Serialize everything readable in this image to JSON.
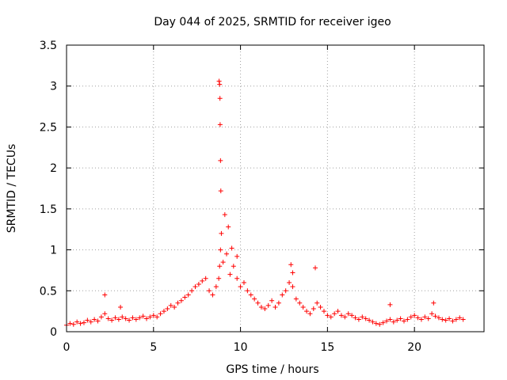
{
  "chart_data": {
    "type": "scatter",
    "title": "Day 044 of 2025, SRMTID for receiver igeo",
    "xlabel": "GPS time / hours",
    "ylabel": "SRMTID / TECUs",
    "xlim": [
      0,
      24
    ],
    "ylim": [
      0,
      3.5
    ],
    "xticks": [
      0,
      5,
      10,
      15,
      20
    ],
    "xtick_labels": [
      "0",
      "5",
      "10",
      "15",
      "20"
    ],
    "yticks": [
      0,
      0.5,
      1,
      1.5,
      2,
      2.5,
      3,
      3.5
    ],
    "ytick_labels": [
      "0",
      "0.5",
      "1",
      "1.5",
      "2",
      "2.5",
      "3",
      "3.5"
    ],
    "grid": true,
    "marker": "+",
    "color": "#ff0000",
    "series": [
      {
        "name": "SRMTID",
        "x": [
          0.0,
          0.2,
          0.4,
          0.6,
          0.8,
          1.0,
          1.2,
          1.4,
          1.6,
          1.8,
          2.0,
          2.2,
          2.4,
          2.6,
          2.8,
          3.0,
          3.2,
          3.4,
          3.6,
          3.8,
          4.0,
          4.2,
          4.4,
          4.6,
          4.8,
          5.0,
          5.2,
          5.4,
          5.6,
          5.8,
          6.0,
          6.2,
          6.4,
          6.6,
          6.8,
          7.0,
          7.2,
          7.4,
          7.6,
          7.8,
          8.0,
          8.2,
          8.4,
          8.6,
          8.75,
          8.8,
          8.85,
          8.9,
          9.0,
          9.2,
          9.4,
          9.6,
          9.8,
          10.0,
          10.2,
          10.4,
          10.6,
          10.8,
          11.0,
          11.2,
          11.4,
          11.6,
          11.8,
          12.0,
          12.2,
          12.4,
          12.6,
          12.8,
          13.0,
          13.2,
          13.4,
          13.6,
          13.8,
          14.0,
          14.2,
          14.4,
          14.6,
          14.8,
          15.0,
          15.2,
          15.4,
          15.6,
          15.8,
          16.0,
          16.2,
          16.4,
          16.6,
          16.8,
          17.0,
          17.2,
          17.4,
          17.6,
          17.8,
          18.0,
          18.2,
          18.4,
          18.6,
          18.8,
          19.0,
          19.2,
          19.4,
          19.6,
          19.8,
          20.0,
          20.2,
          20.4,
          20.6,
          20.8,
          21.0,
          21.2,
          21.4,
          21.6,
          21.8,
          22.0,
          22.2,
          22.4,
          22.6,
          22.8,
          8.77,
          8.8,
          8.82,
          8.83,
          8.85,
          8.87,
          9.1,
          9.3,
          9.5,
          9.8,
          12.9,
          13.0,
          14.3,
          2.2,
          3.1,
          18.6,
          21.1
        ],
        "y": [
          0.08,
          0.1,
          0.09,
          0.12,
          0.1,
          0.11,
          0.14,
          0.12,
          0.15,
          0.13,
          0.18,
          0.22,
          0.16,
          0.14,
          0.17,
          0.15,
          0.18,
          0.16,
          0.14,
          0.17,
          0.15,
          0.17,
          0.19,
          0.16,
          0.18,
          0.2,
          0.18,
          0.22,
          0.25,
          0.28,
          0.32,
          0.3,
          0.35,
          0.38,
          0.42,
          0.45,
          0.5,
          0.55,
          0.58,
          0.62,
          0.65,
          0.5,
          0.45,
          0.55,
          0.65,
          0.8,
          1.0,
          1.2,
          0.85,
          0.95,
          0.7,
          0.8,
          0.65,
          0.55,
          0.6,
          0.5,
          0.45,
          0.4,
          0.35,
          0.3,
          0.28,
          0.32,
          0.38,
          0.3,
          0.35,
          0.45,
          0.5,
          0.6,
          0.55,
          0.4,
          0.35,
          0.3,
          0.25,
          0.22,
          0.28,
          0.35,
          0.3,
          0.25,
          0.2,
          0.18,
          0.22,
          0.25,
          0.2,
          0.18,
          0.22,
          0.2,
          0.17,
          0.15,
          0.18,
          0.16,
          0.14,
          0.12,
          0.1,
          0.09,
          0.11,
          0.13,
          0.15,
          0.12,
          0.14,
          0.16,
          0.13,
          0.15,
          0.18,
          0.2,
          0.17,
          0.15,
          0.18,
          0.16,
          0.22,
          0.19,
          0.17,
          0.15,
          0.14,
          0.16,
          0.13,
          0.15,
          0.17,
          0.15,
          3.06,
          3.02,
          2.85,
          2.53,
          2.09,
          1.72,
          1.43,
          1.28,
          1.02,
          0.92,
          0.82,
          0.72,
          0.78,
          0.45,
          0.3,
          0.33,
          0.35
        ]
      }
    ]
  }
}
